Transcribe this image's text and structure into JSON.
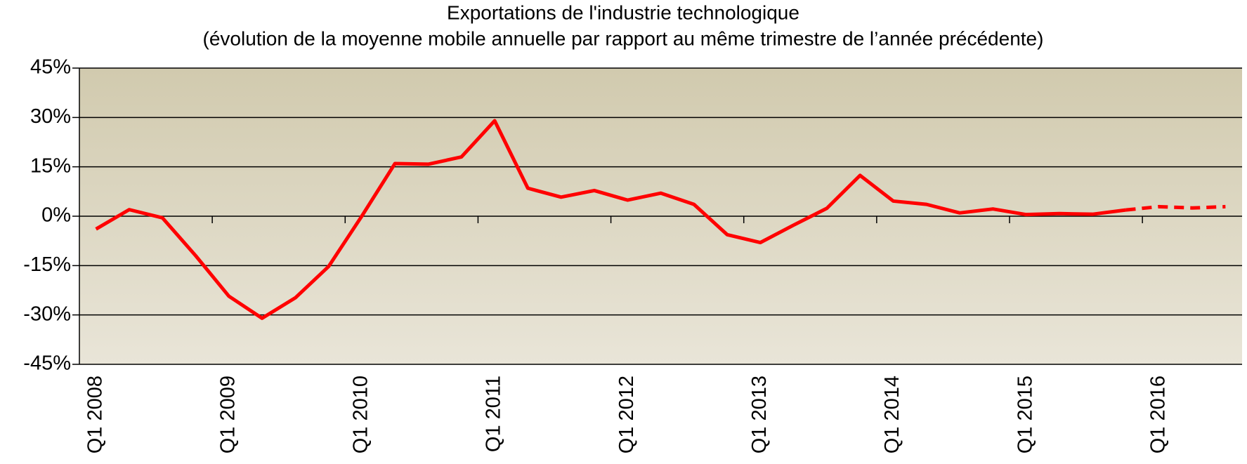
{
  "chart_data": {
    "type": "line",
    "title": "Exportations de l'industrie technologique",
    "subtitle": "(évolution de la moyenne mobile annuelle par rapport au même trimestre de l’année précédente)",
    "categories": [
      "Q1 2008",
      null,
      null,
      null,
      "Q1 2009",
      null,
      null,
      null,
      "Q1 2010",
      null,
      null,
      null,
      "Q1 2011",
      null,
      null,
      null,
      "Q1 2012",
      null,
      null,
      null,
      "Q1 2013",
      null,
      null,
      null,
      "Q1 2014",
      null,
      null,
      null,
      "Q1 2015",
      null,
      null,
      null,
      "Q1 2016",
      null,
      null
    ],
    "series": [
      {
        "color": "#ff0000",
        "style": "solid",
        "values": [
          -3.9,
          2,
          -0.5,
          -12,
          -24.3,
          -31,
          -24.8,
          -15.3,
          0,
          16,
          15.8,
          18,
          29,
          8.5,
          5.8,
          7.8,
          4.9,
          7,
          3.6,
          -5.6,
          -8,
          -2.7,
          2.4,
          12.4,
          4.6,
          3.6,
          1,
          2.2,
          0.5,
          0.8,
          0.6,
          1.9,
          null,
          null,
          null
        ]
      },
      {
        "color": "#ff0000",
        "style": "dashed",
        "values": [
          null,
          null,
          null,
          null,
          null,
          null,
          null,
          null,
          null,
          null,
          null,
          null,
          null,
          null,
          null,
          null,
          null,
          null,
          null,
          null,
          null,
          null,
          null,
          null,
          null,
          null,
          null,
          null,
          null,
          null,
          null,
          1.9,
          2.9,
          2.5,
          2.9
        ]
      }
    ],
    "ylim": [
      -45,
      45
    ],
    "yticks": [
      {
        "value": -45,
        "label": "-45%"
      },
      {
        "value": -30,
        "label": "-30%"
      },
      {
        "value": -15,
        "label": "-15%"
      },
      {
        "value": 0,
        "label": "0%"
      },
      {
        "value": 15,
        "label": "15%"
      },
      {
        "value": 30,
        "label": "30%"
      },
      {
        "value": 45,
        "label": "45%"
      }
    ],
    "grid": true
  }
}
